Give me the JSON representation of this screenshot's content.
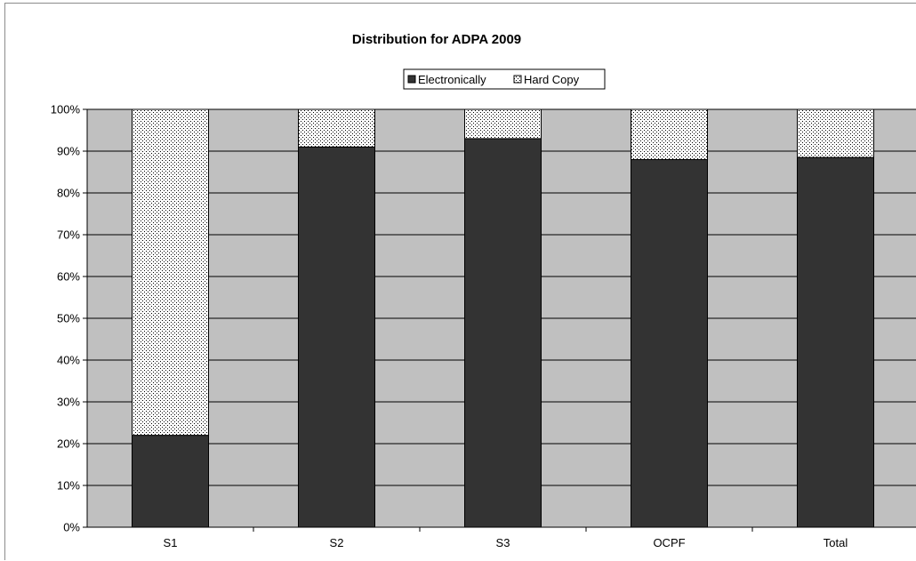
{
  "chart_data": {
    "type": "bar",
    "stacked": "percent",
    "title": "Distribution for ADPA 2009",
    "categories": [
      "S1",
      "S2",
      "S3",
      "OCPF",
      "Total"
    ],
    "series": [
      {
        "name": "Electronically",
        "values": [
          22,
          91,
          93,
          88,
          88.5
        ]
      },
      {
        "name": "Hard Copy",
        "values": [
          78,
          9,
          7,
          12,
          11.5
        ]
      }
    ],
    "ylim": [
      0,
      100
    ],
    "yticks": [
      "0%",
      "10%",
      "20%",
      "30%",
      "40%",
      "50%",
      "60%",
      "70%",
      "80%",
      "90%",
      "100%"
    ],
    "xlabel": "",
    "ylabel": "",
    "grid": true,
    "legend_position": "top-center",
    "colors": {
      "Electronically": "#333333",
      "Hard Copy": "#ffffff",
      "plot_background": "#c0c0c0"
    }
  }
}
